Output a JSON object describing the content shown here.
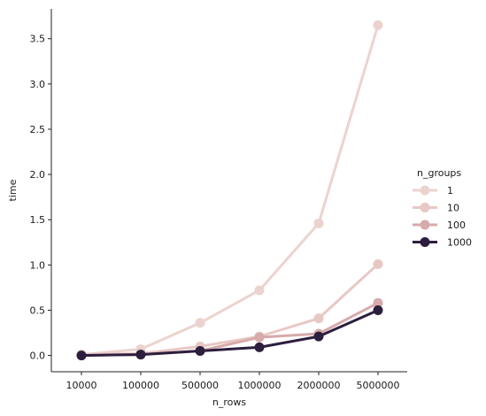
{
  "chart_data": {
    "type": "line",
    "xlabel": "n_rows",
    "ylabel": "time",
    "categories": [
      "10000",
      "100000",
      "500000",
      "1000000",
      "2000000",
      "5000000"
    ],
    "yticks": [
      0.0,
      0.5,
      1.0,
      1.5,
      2.0,
      2.5,
      3.0,
      3.5
    ],
    "ytick_labels": [
      "0.0",
      "0.5",
      "1.0",
      "1.5",
      "2.0",
      "2.5",
      "3.0",
      "3.5"
    ],
    "ylim": [
      -0.18,
      3.83
    ],
    "grid": false,
    "legend": {
      "title": "n_groups",
      "placement": "right"
    },
    "series": [
      {
        "name": "1",
        "color": "#ecd3cf",
        "values": [
          0.01,
          0.07,
          0.36,
          0.72,
          1.46,
          3.65
        ]
      },
      {
        "name": "10",
        "color": "#e8c8c4",
        "values": [
          0.01,
          0.02,
          0.1,
          0.21,
          0.41,
          1.01
        ]
      },
      {
        "name": "100",
        "color": "#d7aaab",
        "values": [
          0.0,
          0.01,
          0.05,
          0.2,
          0.24,
          0.58
        ]
      },
      {
        "name": "1000",
        "color": "#2d1e3e",
        "values": [
          0.0,
          0.01,
          0.05,
          0.09,
          0.21,
          0.5
        ]
      }
    ]
  }
}
